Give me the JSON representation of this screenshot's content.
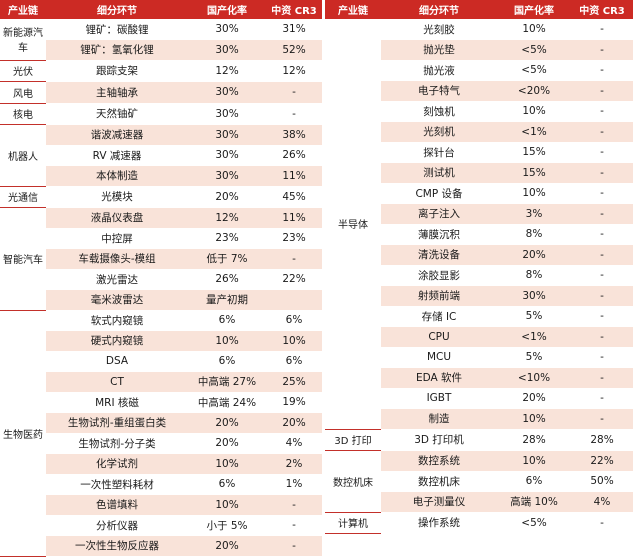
{
  "headers": {
    "chain": "产业链",
    "segment": "细分环节",
    "rate": "国产化率",
    "cr3": "中资 CR3"
  },
  "left": [
    {
      "chain": "新能源汽车",
      "rowspan": 2,
      "segment": "锂矿：碳酸锂",
      "rate": "30%",
      "cr3": "31%"
    },
    {
      "segment": "锂矿：氢氧化锂",
      "rate": "30%",
      "cr3": "52%"
    },
    {
      "chain": "光伏",
      "rowspan": 1,
      "segment": "跟踪支架",
      "rate": "12%",
      "cr3": "12%"
    },
    {
      "chain": "风电",
      "rowspan": 1,
      "segment": "主轴轴承",
      "rate": "30%",
      "cr3": "-"
    },
    {
      "chain": "核电",
      "rowspan": 1,
      "segment": "天然铀矿",
      "rate": "30%",
      "cr3": "-"
    },
    {
      "chain": "机器人",
      "rowspan": 3,
      "segment": "谐波减速器",
      "rate": "30%",
      "cr3": "38%"
    },
    {
      "segment": "RV 减速器",
      "rate": "30%",
      "cr3": "26%"
    },
    {
      "segment": "本体制造",
      "rate": "30%",
      "cr3": "11%"
    },
    {
      "chain": "光通信",
      "rowspan": 1,
      "segment": "光模块",
      "rate": "20%",
      "cr3": "45%"
    },
    {
      "chain": "智能汽车",
      "rowspan": 5,
      "segment": "液晶仪表盘",
      "rate": "12%",
      "cr3": "11%"
    },
    {
      "segment": "中控屏",
      "rate": "23%",
      "cr3": "23%"
    },
    {
      "segment": "车载摄像头-模组",
      "rate": "低于 7%",
      "cr3": "-"
    },
    {
      "segment": "激光雷达",
      "rate": "26%",
      "cr3": "22%"
    },
    {
      "segment": "毫米波雷达",
      "rate": "量产初期",
      "cr3": ""
    },
    {
      "chain": "生物医药",
      "rowspan": 12,
      "segment": "软式内窥镜",
      "rate": "6%",
      "cr3": "6%"
    },
    {
      "segment": "硬式内窥镜",
      "rate": "10%",
      "cr3": "10%"
    },
    {
      "segment": "DSA",
      "rate": "6%",
      "cr3": "6%"
    },
    {
      "segment": "CT",
      "rate": "中高端 27%",
      "cr3": "25%"
    },
    {
      "segment": "MRI 核磁",
      "rate": "中高端 24%",
      "cr3": "19%"
    },
    {
      "segment": "生物试剂-重组蛋白类",
      "rate": "20%",
      "cr3": "20%"
    },
    {
      "segment": "生物试剂-分子类",
      "rate": "20%",
      "cr3": "4%"
    },
    {
      "segment": "化学试剂",
      "rate": "10%",
      "cr3": "2%"
    },
    {
      "segment": "一次性塑料耗材",
      "rate": "6%",
      "cr3": "1%"
    },
    {
      "segment": "色谱填料",
      "rate": "10%",
      "cr3": "-"
    },
    {
      "segment": "分析仪器",
      "rate": "小于 5%",
      "cr3": "-"
    },
    {
      "segment": "一次性生物反应器",
      "rate": "20%",
      "cr3": "-"
    }
  ],
  "right": [
    {
      "chain": "半导体",
      "rowspan": 20,
      "segment": "光刻胶",
      "rate": "10%",
      "cr3": "-"
    },
    {
      "segment": "抛光垫",
      "rate": "<5%",
      "cr3": "-"
    },
    {
      "segment": "抛光液",
      "rate": "<5%",
      "cr3": "-"
    },
    {
      "segment": "电子特气",
      "rate": "<20%",
      "cr3": "-"
    },
    {
      "segment": "刻蚀机",
      "rate": "10%",
      "cr3": "-"
    },
    {
      "segment": "光刻机",
      "rate": "<1%",
      "cr3": "-"
    },
    {
      "segment": "探针台",
      "rate": "15%",
      "cr3": "-"
    },
    {
      "segment": "测试机",
      "rate": "15%",
      "cr3": "-"
    },
    {
      "segment": "CMP 设备",
      "rate": "10%",
      "cr3": "-"
    },
    {
      "segment": "离子注入",
      "rate": "3%",
      "cr3": "-"
    },
    {
      "segment": "薄膜沉积",
      "rate": "8%",
      "cr3": "-"
    },
    {
      "segment": "清洗设备",
      "rate": "20%",
      "cr3": "-"
    },
    {
      "segment": "涂胶显影",
      "rate": "8%",
      "cr3": "-"
    },
    {
      "segment": "射频前端",
      "rate": "30%",
      "cr3": "-"
    },
    {
      "segment": "存储 IC",
      "rate": "5%",
      "cr3": "-"
    },
    {
      "segment": "CPU",
      "rate": "<1%",
      "cr3": "-"
    },
    {
      "segment": "MCU",
      "rate": "5%",
      "cr3": "-"
    },
    {
      "segment": "EDA 软件",
      "rate": "<10%",
      "cr3": "-"
    },
    {
      "segment": "IGBT",
      "rate": "20%",
      "cr3": "-"
    },
    {
      "segment": "制造",
      "rate": "10%",
      "cr3": "-"
    },
    {
      "chain": "3D 打印",
      "rowspan": 1,
      "segment": "3D 打印机",
      "rate": "28%",
      "cr3": "28%"
    },
    {
      "chain": "数控机床",
      "rowspan": 3,
      "segment": "数控系统",
      "rate": "10%",
      "cr3": "22%"
    },
    {
      "segment": "数控机床",
      "rate": "6%",
      "cr3": "50%"
    },
    {
      "segment": "电子测量仪",
      "rate": "高端 10%",
      "cr3": "4%"
    },
    {
      "chain": "计算机",
      "rowspan": 1,
      "segment": "操作系统",
      "rate": "<5%",
      "cr3": "-"
    }
  ]
}
